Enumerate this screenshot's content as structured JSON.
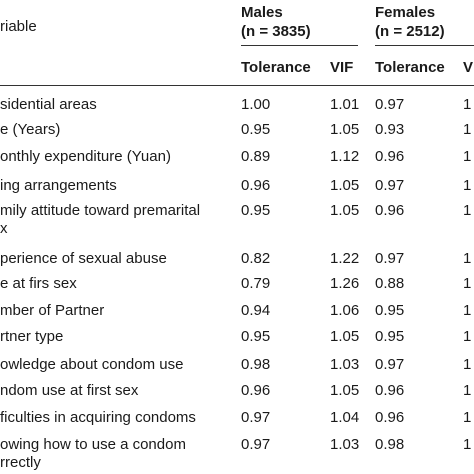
{
  "header": {
    "variable": "riable",
    "males": "Males",
    "males_n": "(n = 3835)",
    "females": "Females",
    "females_n": "(n = 2512)",
    "tolerance_m": "Tolerance",
    "vif_m": "VIF",
    "tolerance_f": "Tolerance",
    "vif_f": "V"
  },
  "rows": [
    {
      "label": "sidential areas",
      "label2": "",
      "m_tol": "1.00",
      "m_vif": "1.01",
      "f_tol": "0.97",
      "f_vif": "1"
    },
    {
      "label": "e (Years)",
      "label2": "",
      "m_tol": "0.95",
      "m_vif": "1.05",
      "f_tol": "0.93",
      "f_vif": "1"
    },
    {
      "label": "onthly expenditure (Yuan)",
      "label2": "",
      "m_tol": "0.89",
      "m_vif": "1.12",
      "f_tol": "0.96",
      "f_vif": "1"
    },
    {
      "label": "ing arrangements",
      "label2": "",
      "m_tol": "0.96",
      "m_vif": "1.05",
      "f_tol": "0.97",
      "f_vif": "1"
    },
    {
      "label": "mily attitude toward premarital",
      "label2": "x",
      "m_tol": "0.95",
      "m_vif": "1.05",
      "f_tol": "0.96",
      "f_vif": "1"
    },
    {
      "label": "perience of sexual abuse",
      "label2": "",
      "m_tol": "0.82",
      "m_vif": "1.22",
      "f_tol": "0.97",
      "f_vif": "1"
    },
    {
      "label": "e at firs sex",
      "label2": "",
      "m_tol": "0.79",
      "m_vif": "1.26",
      "f_tol": "0.88",
      "f_vif": "1"
    },
    {
      "label": "mber of Partner",
      "label2": "",
      "m_tol": "0.94",
      "m_vif": "1.06",
      "f_tol": "0.95",
      "f_vif": "1"
    },
    {
      "label": "rtner type",
      "label2": "",
      "m_tol": "0.95",
      "m_vif": "1.05",
      "f_tol": "0.95",
      "f_vif": "1"
    },
    {
      "label": "owledge about condom use",
      "label2": "",
      "m_tol": "0.98",
      "m_vif": "1.03",
      "f_tol": "0.97",
      "f_vif": "1"
    },
    {
      "label": "ndom use at first sex",
      "label2": "",
      "m_tol": "0.96",
      "m_vif": "1.05",
      "f_tol": "0.96",
      "f_vif": "1"
    },
    {
      "label": "ficulties in acquiring condoms",
      "label2": "",
      "m_tol": "0.97",
      "m_vif": "1.04",
      "f_tol": "0.96",
      "f_vif": "1"
    },
    {
      "label": "owing how to use a condom",
      "label2": "rrectly",
      "m_tol": "0.97",
      "m_vif": "1.03",
      "f_tol": "0.98",
      "f_vif": "1"
    }
  ]
}
